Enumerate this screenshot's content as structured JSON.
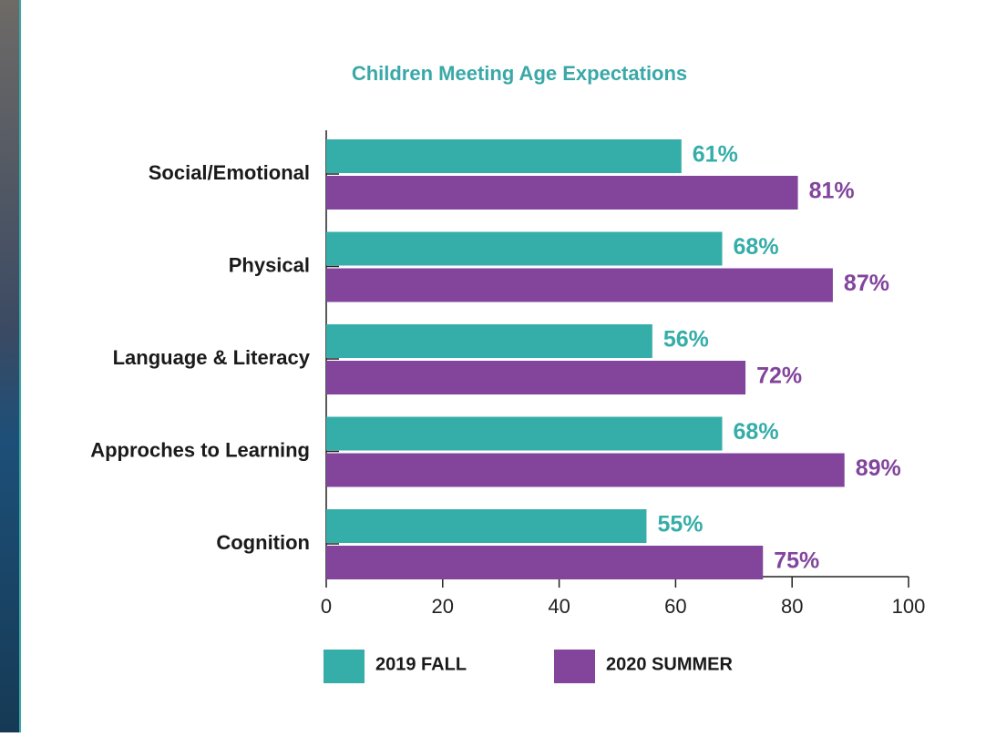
{
  "chart_data": {
    "type": "bar",
    "orientation": "horizontal",
    "title": "Children Meeting Age Expectations",
    "categories": [
      "Social/Emotional",
      "Physical",
      "Language & Literacy",
      "Approches to Learning",
      "Cognition"
    ],
    "series": [
      {
        "name": "2019 FALL",
        "color": "#35ada9",
        "values": [
          61,
          68,
          56,
          68,
          55
        ],
        "value_labels": [
          "61%",
          "68%",
          "56%",
          "68%",
          "55%"
        ]
      },
      {
        "name": "2020 SUMMER",
        "color": "#82459b",
        "values": [
          81,
          87,
          72,
          89,
          75
        ],
        "value_labels": [
          "81%",
          "87%",
          "72%",
          "89%",
          "75%"
        ]
      }
    ],
    "xlim": [
      0,
      100
    ],
    "xticks": [
      0,
      20,
      40,
      60,
      80,
      100
    ]
  }
}
